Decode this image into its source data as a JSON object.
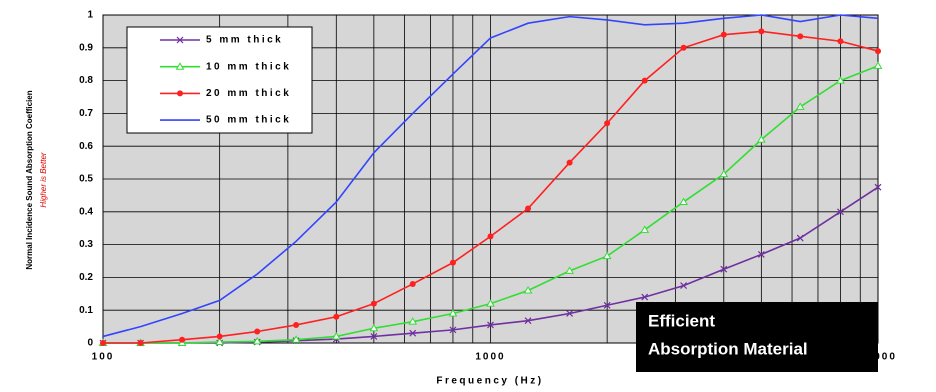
{
  "chart_data": {
    "type": "line",
    "y_label": "Normal Incidence Sound Absorption Coefficien",
    "y_sublabel": "Higher is Better",
    "x_label": "Frequency (Hz)",
    "x": [
      100,
      125,
      160,
      200,
      250,
      315,
      400,
      500,
      630,
      800,
      1000,
      1250,
      1600,
      2000,
      2500,
      3150,
      4000,
      5000,
      6300,
      8000,
      10000
    ],
    "series": [
      {
        "name": "5 mm thick",
        "color": "#7030a0",
        "marker": "cross",
        "values": [
          0,
          0,
          0,
          0,
          0.003,
          0.007,
          0.012,
          0.02,
          0.03,
          0.04,
          0.055,
          0.068,
          0.09,
          0.115,
          0.14,
          0.175,
          0.225,
          0.27,
          0.32,
          0.4,
          0.475
        ]
      },
      {
        "name": "10 mm thick",
        "color": "#33dd33",
        "marker": "triangle",
        "values": [
          0,
          0,
          0,
          0.003,
          0.005,
          0.01,
          0.02,
          0.045,
          0.065,
          0.09,
          0.12,
          0.16,
          0.22,
          0.265,
          0.345,
          0.43,
          0.515,
          0.62,
          0.72,
          0.8,
          0.845
        ]
      },
      {
        "name": "20 mm thick",
        "color": "#ff2020",
        "marker": "circle",
        "values": [
          0,
          0,
          0.01,
          0.02,
          0.035,
          0.055,
          0.08,
          0.12,
          0.18,
          0.245,
          0.325,
          0.41,
          0.55,
          0.67,
          0.8,
          0.9,
          0.94,
          0.95,
          0.935,
          0.92,
          0.89
        ]
      },
      {
        "name": "50 mm thick",
        "color": "#3344ff",
        "marker": "none",
        "values": [
          0.02,
          0.05,
          0.09,
          0.13,
          0.21,
          0.31,
          0.43,
          0.58,
          0.7,
          0.82,
          0.93,
          0.975,
          0.995,
          0.985,
          0.97,
          0.975,
          0.99,
          1.0,
          0.98,
          1.0,
          0.99
        ]
      }
    ],
    "xlog": true,
    "xlim": [
      100,
      10000
    ],
    "xticks": [
      100,
      1000,
      10000
    ],
    "xminor_ticks": [
      200,
      300,
      400,
      500,
      600,
      700,
      800,
      900,
      2000,
      3000,
      4000,
      5000,
      6000,
      7000,
      8000,
      9000
    ],
    "ylim": [
      0,
      1
    ],
    "yticks": [
      0,
      0.1,
      0.2,
      0.3,
      0.4,
      0.5,
      0.6,
      0.7,
      0.8,
      0.9,
      1
    ],
    "grid": true,
    "legend": "upper left",
    "plot_background": "#d6d6d6",
    "annotation": [
      "Efficient",
      "Absorption Material"
    ]
  }
}
